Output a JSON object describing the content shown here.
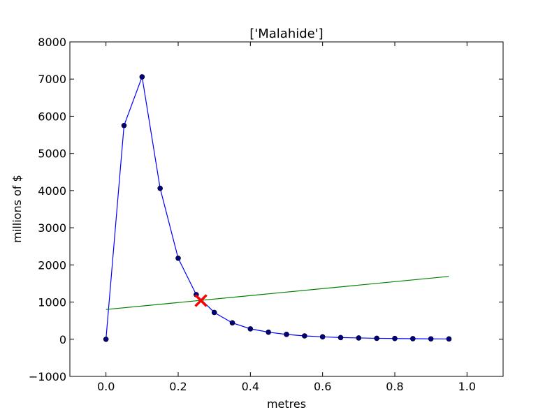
{
  "chart_data": {
    "type": "line",
    "title": "['Malahide']",
    "xlabel": "metres",
    "ylabel": "millions of $",
    "xlim": [
      -0.1,
      1.1
    ],
    "ylim": [
      -1000,
      8000
    ],
    "xticks": [
      "0.0",
      "0.2",
      "0.4",
      "0.6",
      "0.8",
      "1.0"
    ],
    "xtick_values": [
      0.0,
      0.2,
      0.4,
      0.6,
      0.8,
      1.0
    ],
    "yticks": [
      "−1000",
      "0",
      "1000",
      "2000",
      "3000",
      "4000",
      "5000",
      "6000",
      "7000",
      "8000"
    ],
    "ytick_values": [
      -1000,
      0,
      1000,
      2000,
      3000,
      4000,
      5000,
      6000,
      7000,
      8000
    ],
    "grid": false,
    "series": [
      {
        "type": "line-markers",
        "color": "#0000ff",
        "marker_color": "#000080",
        "x": [
          0.0,
          0.05,
          0.1,
          0.15,
          0.2,
          0.25,
          0.3,
          0.35,
          0.4,
          0.45,
          0.5,
          0.55,
          0.6,
          0.65,
          0.7,
          0.75,
          0.8,
          0.85,
          0.9,
          0.95
        ],
        "y": [
          0,
          5750,
          7060,
          4060,
          2180,
          1200,
          720,
          440,
          280,
          190,
          130,
          90,
          65,
          45,
          35,
          25,
          20,
          15,
          10,
          8
        ]
      },
      {
        "type": "line",
        "color": "#008000",
        "x": [
          0.0,
          0.95
        ],
        "y": [
          800,
          1690
        ]
      },
      {
        "type": "x-marker",
        "color": "#ff0000",
        "x": [
          0.263
        ],
        "y": [
          1040
        ]
      }
    ]
  }
}
